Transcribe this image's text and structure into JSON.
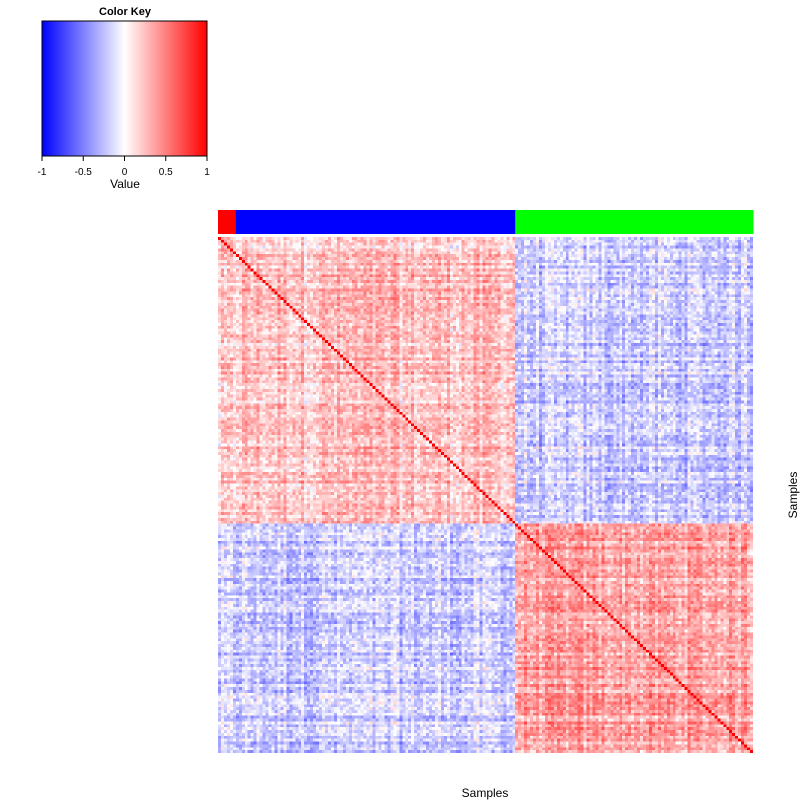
{
  "color_key": {
    "title": "Color Key",
    "xlabel": "Value",
    "ticks": [
      "-1",
      "-0.5",
      "0",
      "0.5",
      "1"
    ],
    "range": [
      -1,
      1
    ],
    "colors": [
      "#0000ff",
      "#ffffff",
      "#ff0000"
    ]
  },
  "chart_data": {
    "type": "heatmap",
    "title": "",
    "xlabel": "Samples",
    "ylabel": "Samples",
    "value_range": [
      -1,
      1
    ],
    "colors": {
      "low": "#0000ff",
      "mid": "#ffffff",
      "high": "#ff0000"
    },
    "n_samples": 180,
    "groups": [
      {
        "color": "#ff0000",
        "count": 6
      },
      {
        "color": "#0000ff",
        "count": 94
      },
      {
        "color": "#00ff00",
        "count": 80
      }
    ],
    "diagonal_value": 1,
    "block_pattern": [
      [
        0.2,
        0.15,
        -0.2
      ],
      [
        0.15,
        0.25,
        -0.2
      ],
      [
        -0.2,
        -0.2,
        0.35
      ]
    ]
  }
}
